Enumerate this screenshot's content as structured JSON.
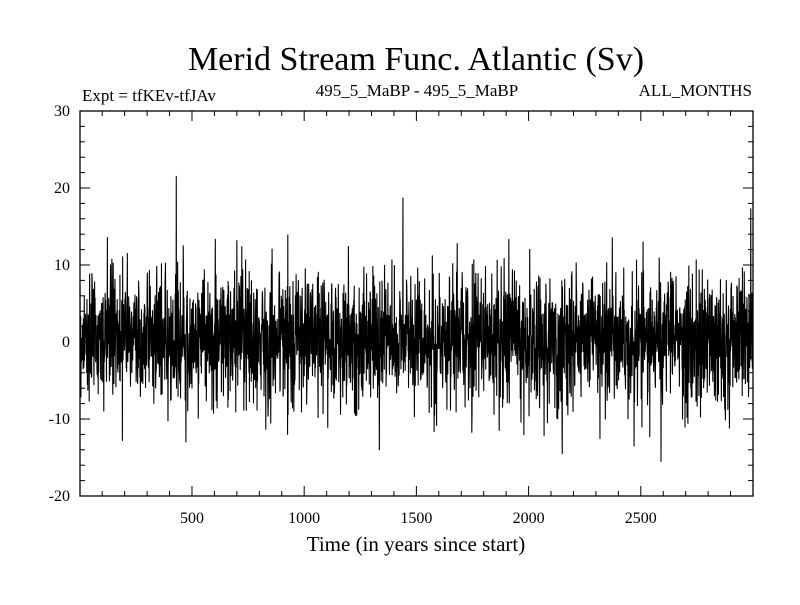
{
  "header": {
    "title": "Merid Stream Func. Atlantic (Sv)",
    "experiment": "Expt = tfKEv-tfJAv",
    "period": "495_5_MaBP - 495_5_MaBP",
    "months": "ALL_MONTHS"
  },
  "chart_data": {
    "type": "line",
    "title": "Merid Stream Func. Atlantic (Sv)",
    "xlabel": "Time (in years since start)",
    "ylabel": "",
    "xlim": [
      1,
      3000
    ],
    "ylim": [
      -20,
      30
    ],
    "x_ticks": [
      500,
      1000,
      1500,
      2000,
      2500
    ],
    "x_tick_labels": [
      "500",
      "1000",
      "1500",
      "2000",
      "2500"
    ],
    "y_ticks": [
      -20,
      -10,
      0,
      10,
      20,
      30
    ],
    "y_tick_labels": [
      "-20",
      "-10",
      "0",
      "10",
      "20",
      "30"
    ],
    "grid": false,
    "legend": "none",
    "series": [
      {
        "color": "#000000",
        "n_points": 3000,
        "mean": 0.5,
        "typical_range": [
          -10,
          12
        ],
        "notable_points": [
          {
            "x": 430,
            "y": 21.5
          },
          {
            "x": 1440,
            "y": 18.7
          },
          {
            "x": 2990,
            "y": 17.3
          },
          {
            "x": 2590,
            "y": -15.5
          },
          {
            "x": 2150,
            "y": -14.5
          },
          {
            "x": 2470,
            "y": -13.5
          },
          {
            "x": 190,
            "y": -12.8
          },
          {
            "x": 1335,
            "y": -14.0
          }
        ]
      }
    ]
  }
}
